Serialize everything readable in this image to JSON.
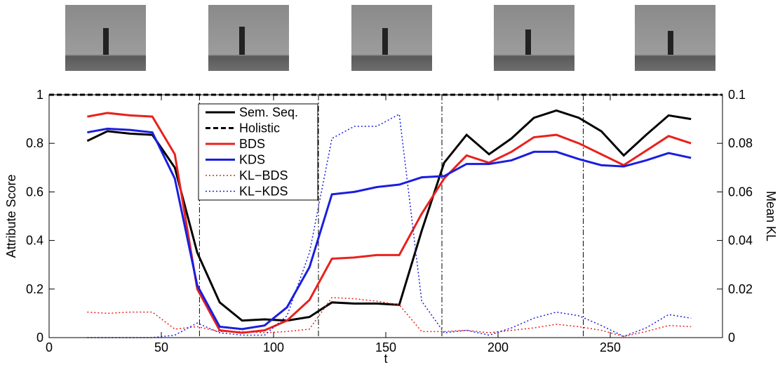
{
  "chart_data": {
    "type": "line",
    "xlabel": "t",
    "ylabel": "Attribute Score",
    "y2label": "Mean KL",
    "x": [
      17,
      26,
      36,
      46,
      56,
      66,
      76,
      86,
      96,
      106,
      116,
      126,
      136,
      146,
      156,
      166,
      176,
      186,
      196,
      206,
      216,
      226,
      236,
      246,
      256,
      266,
      276,
      286
    ],
    "xlim": [
      0,
      300
    ],
    "xticks": [
      0,
      50,
      100,
      150,
      200,
      250
    ],
    "ylim": [
      0,
      1
    ],
    "yticks": [
      0,
      0.2,
      0.4,
      0.6,
      0.8,
      1
    ],
    "y2lim": [
      0,
      0.1
    ],
    "y2ticks": [
      0,
      0.02,
      0.04,
      0.06,
      0.08,
      0.1
    ],
    "vlines": [
      67,
      120,
      175,
      238
    ],
    "legend": "upper-left",
    "series": [
      {
        "name": "Sem. Seq.",
        "color": "#000000",
        "style": "solid",
        "values": [
          0.81,
          0.85,
          0.84,
          0.835,
          0.7,
          0.35,
          0.145,
          0.07,
          0.075,
          0.07,
          0.085,
          0.145,
          0.14,
          0.14,
          0.135,
          0.44,
          0.72,
          0.835,
          0.755,
          0.82,
          0.905,
          0.935,
          0.905,
          0.85,
          0.75,
          0.835,
          0.915,
          0.9
        ]
      },
      {
        "name": "Holistic",
        "color": "#000000",
        "style": "dashed",
        "x": [
          0,
          300
        ],
        "values": [
          1,
          1
        ]
      },
      {
        "name": "BDS",
        "color": "#e8211d",
        "style": "solid",
        "values": [
          0.91,
          0.925,
          0.915,
          0.91,
          0.755,
          0.2,
          0.03,
          0.02,
          0.03,
          0.07,
          0.155,
          0.325,
          0.33,
          0.34,
          0.34,
          0.51,
          0.655,
          0.75,
          0.72,
          0.765,
          0.825,
          0.835,
          0.8,
          0.755,
          0.71,
          0.77,
          0.83,
          0.8
        ]
      },
      {
        "name": "KDS",
        "color": "#1a1ee0",
        "style": "solid",
        "values": [
          0.845,
          0.86,
          0.855,
          0.845,
          0.655,
          0.215,
          0.045,
          0.035,
          0.05,
          0.125,
          0.29,
          0.59,
          0.6,
          0.62,
          0.63,
          0.66,
          0.665,
          0.715,
          0.715,
          0.73,
          0.765,
          0.765,
          0.735,
          0.71,
          0.705,
          0.73,
          0.76,
          0.74
        ]
      },
      {
        "name": "KL−BDS",
        "color": "#e8211d",
        "style": "dotted",
        "axis": "y2",
        "values": [
          0.0105,
          0.01,
          0.0105,
          0.0105,
          0.0035,
          0.0045,
          0.0025,
          0.0025,
          0.002,
          0.0025,
          0.0035,
          0.0165,
          0.016,
          0.015,
          0.0135,
          0.0025,
          0.0025,
          0.003,
          0.002,
          0.003,
          0.004,
          0.0055,
          0.0045,
          0.003,
          0.0005,
          0.0025,
          0.005,
          0.0045
        ]
      },
      {
        "name": "KL−KDS",
        "color": "#1a1ee0",
        "style": "dotted",
        "axis": "y2",
        "values": [
          0,
          0,
          0,
          0,
          0.001,
          0.006,
          0.002,
          0.001,
          0.001,
          0.009,
          0.035,
          0.082,
          0.087,
          0.087,
          0.092,
          0.015,
          0.002,
          0.003,
          0.001,
          0.004,
          0.008,
          0.0105,
          0.009,
          0.005,
          0.0005,
          0.004,
          0.0095,
          0.008
        ]
      }
    ]
  }
}
